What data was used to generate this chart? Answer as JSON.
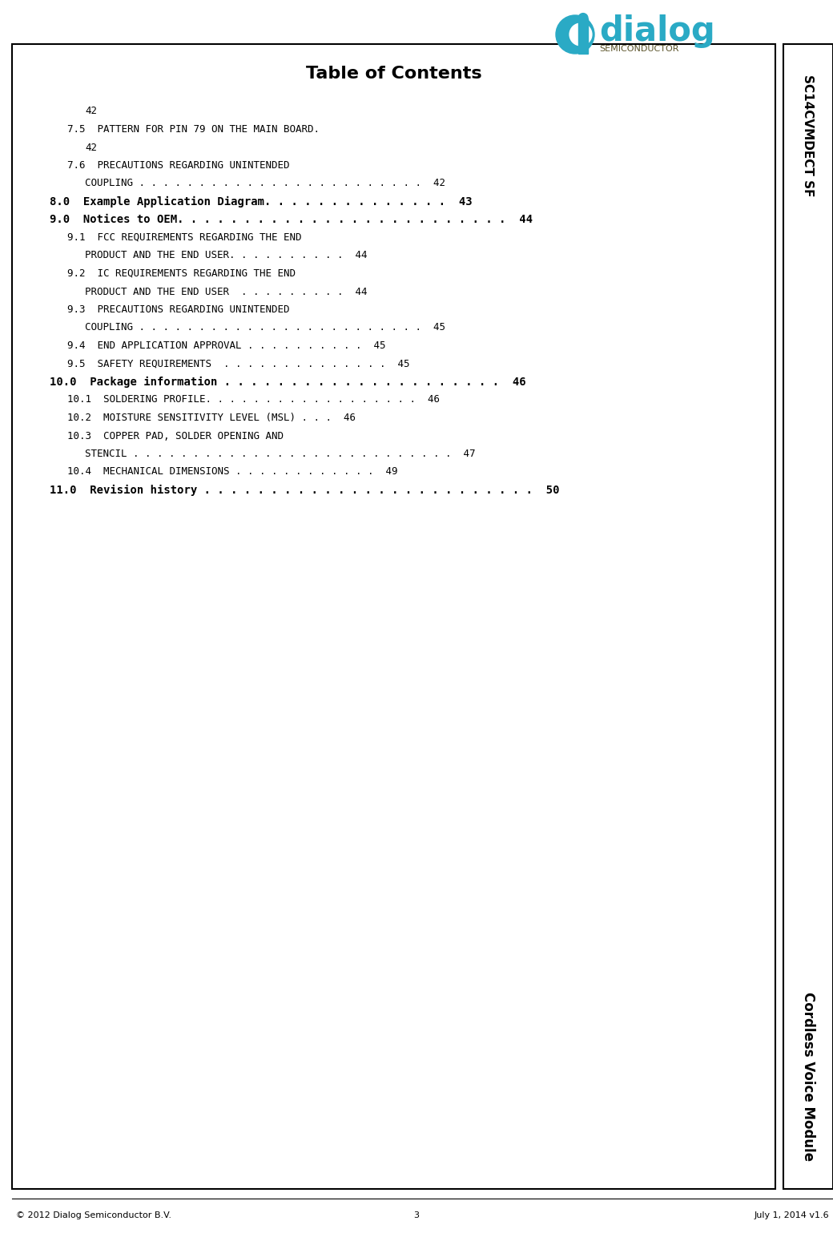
{
  "title": "Table of Contents",
  "sidebar_top": "SC14CVMDECT SF",
  "sidebar_bottom": "Cordless Voice Module",
  "footer_left": "© 2012 Dialog Semiconductor B.V.",
  "footer_center": "3",
  "footer_right": "July 1, 2014 v1.6",
  "bg_color": "#ffffff",
  "teal_color": "#2aaac5",
  "semi_text_color": "#5a5228",
  "toc_entries": [
    {
      "indent": 2,
      "text": "42",
      "bold": false,
      "size": 9
    },
    {
      "indent": 1,
      "text": "7.5  PATTERN FOR PIN 79 ON THE MAIN BOARD.",
      "bold": false,
      "size": 9
    },
    {
      "indent": 2,
      "text": "42",
      "bold": false,
      "size": 9
    },
    {
      "indent": 1,
      "text": "7.6  PRECAUTIONS REGARDING UNINTENDED",
      "bold": false,
      "size": 9
    },
    {
      "indent": 2,
      "text": "COUPLING . . . . . . . . . . . . . . . . . . . . . . . .  42",
      "bold": false,
      "size": 9
    },
    {
      "indent": 0,
      "text": "8.0  Example Application Diagram. . . . . . . . . . . . . .  43",
      "bold": true,
      "size": 10
    },
    {
      "indent": 0,
      "text": "9.0  Notices to OEM. . . . . . . . . . . . . . . . . . . . . . . . .  44",
      "bold": true,
      "size": 10
    },
    {
      "indent": 1,
      "text": "9.1  FCC REQUIREMENTS REGARDING THE END",
      "bold": false,
      "size": 9
    },
    {
      "indent": 2,
      "text": "PRODUCT AND THE END USER. . . . . . . . . .  44",
      "bold": false,
      "size": 9
    },
    {
      "indent": 1,
      "text": "9.2  IC REQUIREMENTS REGARDING THE END",
      "bold": false,
      "size": 9
    },
    {
      "indent": 2,
      "text": "PRODUCT AND THE END USER  . . . . . . . . .  44",
      "bold": false,
      "size": 9
    },
    {
      "indent": 1,
      "text": "9.3  PRECAUTIONS REGARDING UNINTENDED",
      "bold": false,
      "size": 9
    },
    {
      "indent": 2,
      "text": "COUPLING . . . . . . . . . . . . . . . . . . . . . . . .  45",
      "bold": false,
      "size": 9
    },
    {
      "indent": 1,
      "text": "9.4  END APPLICATION APPROVAL . . . . . . . . . .  45",
      "bold": false,
      "size": 9
    },
    {
      "indent": 1,
      "text": "9.5  SAFETY REQUIREMENTS  . . . . . . . . . . . . . .  45",
      "bold": false,
      "size": 9
    },
    {
      "indent": 0,
      "text": "10.0  Package information . . . . . . . . . . . . . . . . . . . . .  46",
      "bold": true,
      "size": 10
    },
    {
      "indent": 1,
      "text": "10.1  SOLDERING PROFILE. . . . . . . . . . . . . . . . . .  46",
      "bold": false,
      "size": 9
    },
    {
      "indent": 1,
      "text": "10.2  MOISTURE SENSITIVITY LEVEL (MSL) . . .  46",
      "bold": false,
      "size": 9
    },
    {
      "indent": 1,
      "text": "10.3  COPPER PAD, SOLDER OPENING AND",
      "bold": false,
      "size": 9
    },
    {
      "indent": 2,
      "text": "STENCIL . . . . . . . . . . . . . . . . . . . . . . . . . . .  47",
      "bold": false,
      "size": 9
    },
    {
      "indent": 1,
      "text": "10.4  MECHANICAL DIMENSIONS . . . . . . . . . . . .  49",
      "bold": false,
      "size": 9
    },
    {
      "indent": 0,
      "text": "11.0  Revision history . . . . . . . . . . . . . . . . . . . . . . . . .  50",
      "bold": true,
      "size": 10
    }
  ]
}
